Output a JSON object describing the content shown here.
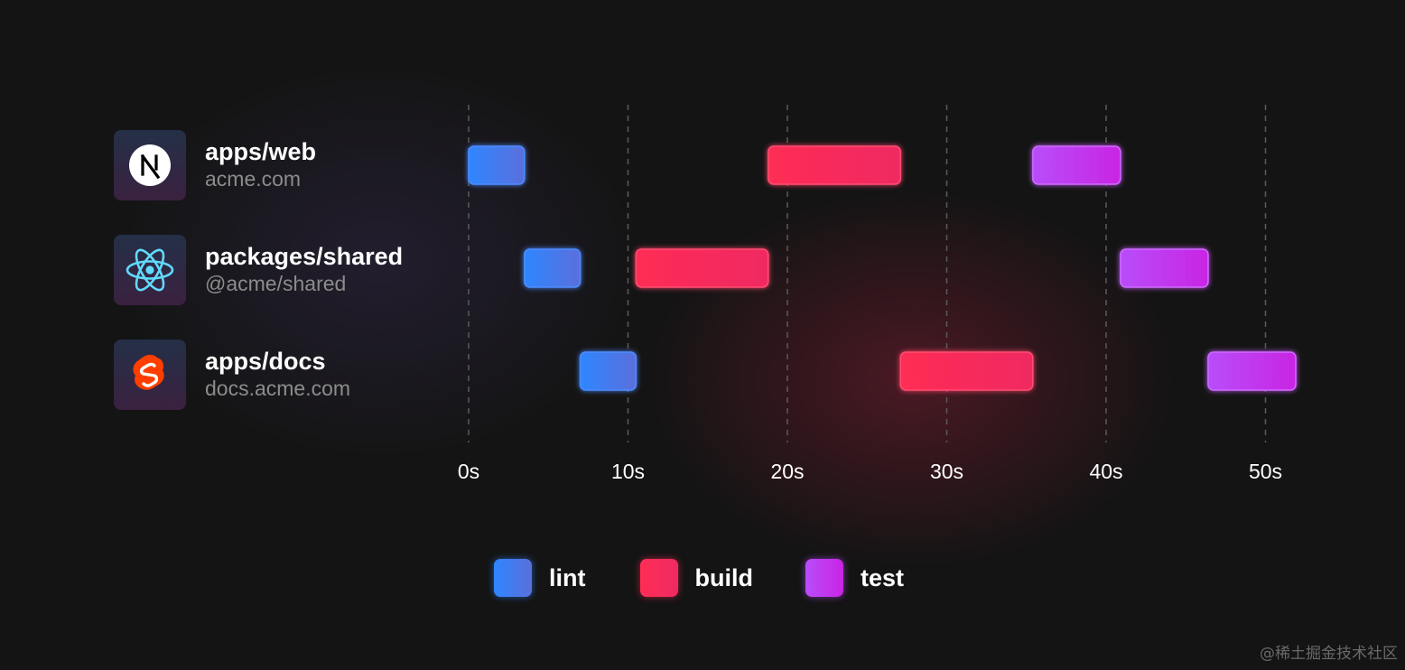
{
  "projects": [
    {
      "name": "apps/web",
      "subtitle": "acme.com",
      "icon": "nextjs-logo-icon"
    },
    {
      "name": "packages/shared",
      "subtitle": "@acme/shared",
      "icon": "react-logo-icon"
    },
    {
      "name": "apps/docs",
      "subtitle": "docs.acme.com",
      "icon": "svelte-logo-icon"
    }
  ],
  "legend": [
    {
      "label": "lint",
      "color_start": "#2e86ff",
      "color_end": "#5b6fdc"
    },
    {
      "label": "build",
      "color_start": "#ff2d55",
      "color_end": "#ef2a62"
    },
    {
      "label": "test",
      "color_start": "#b84dfa",
      "color_end": "#c925e3"
    }
  ],
  "watermark": "@稀土掘金技术社区",
  "chart_data": {
    "type": "gantt",
    "categories": [
      "apps/web",
      "packages/shared",
      "apps/docs"
    ],
    "x_ticks": [
      "0s",
      "10s",
      "20s",
      "30s",
      "40s",
      "50s"
    ],
    "xlim": [
      0,
      50
    ],
    "grid": true,
    "legend_position": "bottom",
    "series": [
      {
        "name": "lint",
        "tasks": [
          {
            "category": "apps/web",
            "start": 0,
            "end": 3.5
          },
          {
            "category": "packages/shared",
            "start": 3.5,
            "end": 7
          },
          {
            "category": "apps/docs",
            "start": 7,
            "end": 10.5
          }
        ]
      },
      {
        "name": "build",
        "tasks": [
          {
            "category": "apps/web",
            "start": 18.8,
            "end": 27.1
          },
          {
            "category": "packages/shared",
            "start": 10.5,
            "end": 18.8
          },
          {
            "category": "apps/docs",
            "start": 27.1,
            "end": 35.4
          }
        ]
      },
      {
        "name": "test",
        "tasks": [
          {
            "category": "apps/web",
            "start": 35.4,
            "end": 40.9
          },
          {
            "category": "packages/shared",
            "start": 40.9,
            "end": 46.4
          },
          {
            "category": "apps/docs",
            "start": 46.4,
            "end": 51.9
          }
        ]
      }
    ]
  }
}
